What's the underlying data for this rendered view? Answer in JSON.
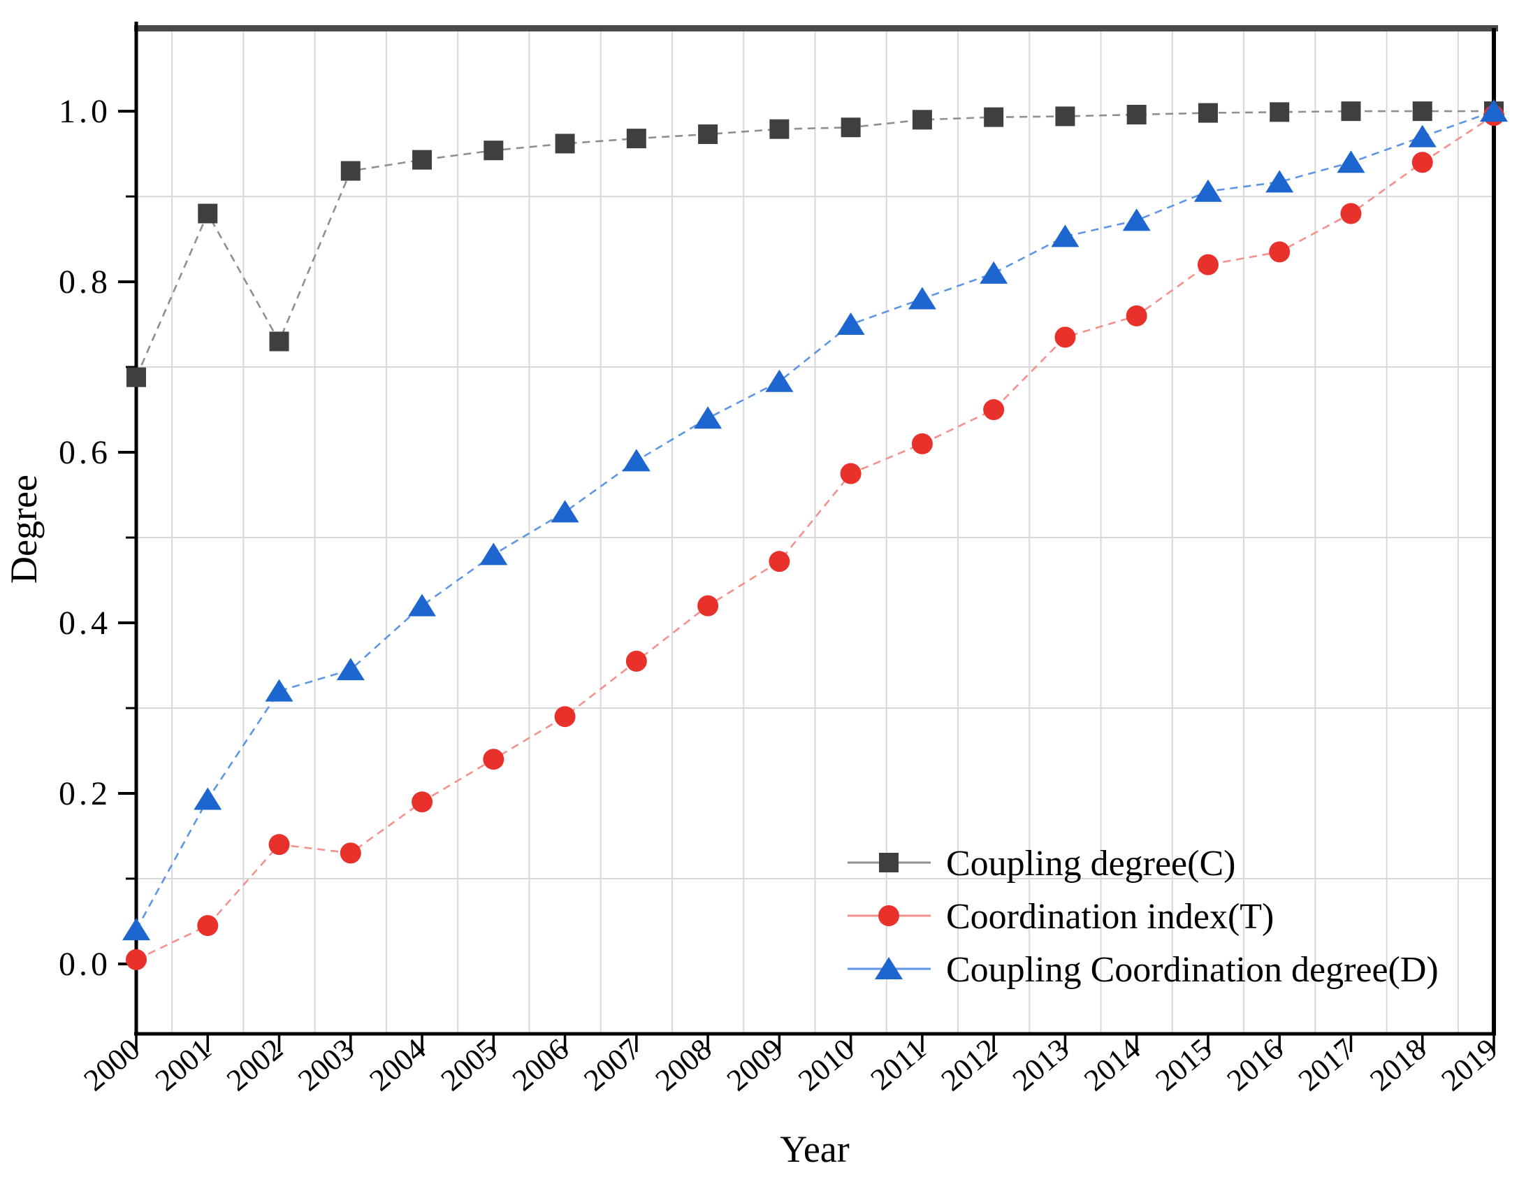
{
  "chart_data": {
    "type": "line",
    "title": "",
    "xlabel": "Year",
    "ylabel": "Degree",
    "x": [
      2000,
      2001,
      2002,
      2003,
      2004,
      2005,
      2006,
      2007,
      2008,
      2009,
      2010,
      2011,
      2012,
      2013,
      2014,
      2015,
      2016,
      2017,
      2018,
      2019
    ],
    "xtick_labels": [
      "2000",
      "2001",
      "2002",
      "2003",
      "2004",
      "2005",
      "2006",
      "2007",
      "2008",
      "2009",
      "2010",
      "2011",
      "2012",
      "2013",
      "2014",
      "2015",
      "2016",
      "2017",
      "2018",
      "2019"
    ],
    "yticks": [
      0.0,
      0.2,
      0.4,
      0.6,
      0.8,
      1.0
    ],
    "ytick_labels": [
      "0.0",
      "0.2",
      "0.4",
      "0.6",
      "0.8",
      "1.0"
    ],
    "yticks_minor": [
      0.1,
      0.3,
      0.5,
      0.7,
      0.9
    ],
    "ylim": [
      -0.082,
      1.105
    ],
    "grid": "minor-gridlines-on",
    "legend_position": "lower-right",
    "series": [
      {
        "name": "Coupling degree(C)",
        "marker": "square",
        "marker_color": "#3f3f3f",
        "line_color": "#8f8f8f",
        "values": [
          0.688,
          0.88,
          0.73,
          0.93,
          0.943,
          0.954,
          0.962,
          0.968,
          0.973,
          0.979,
          0.981,
          0.99,
          0.993,
          0.994,
          0.996,
          0.998,
          0.999,
          1.0,
          1.0,
          1.0
        ]
      },
      {
        "name": "Coordination index(T)",
        "marker": "circle",
        "marker_color": "#e8312b",
        "line_color": "#f4918c",
        "values": [
          0.005,
          0.045,
          0.14,
          0.13,
          0.19,
          0.24,
          0.29,
          0.355,
          0.42,
          0.472,
          0.575,
          0.61,
          0.65,
          0.735,
          0.76,
          0.82,
          0.835,
          0.88,
          0.94,
          0.995
        ]
      },
      {
        "name": "Coupling Coordination degree(D)",
        "marker": "triangle",
        "marker_color": "#1e66cf",
        "line_color": "#5f95e6",
        "values": [
          0.04,
          0.193,
          0.32,
          0.345,
          0.42,
          0.48,
          0.53,
          0.59,
          0.64,
          0.683,
          0.75,
          0.78,
          0.81,
          0.853,
          0.872,
          0.906,
          0.917,
          0.94,
          0.97,
          1.0
        ]
      }
    ],
    "colors": {
      "grid": "#d8d8d8",
      "spine": "#000000",
      "top_spine": "#4b4b4b"
    }
  }
}
